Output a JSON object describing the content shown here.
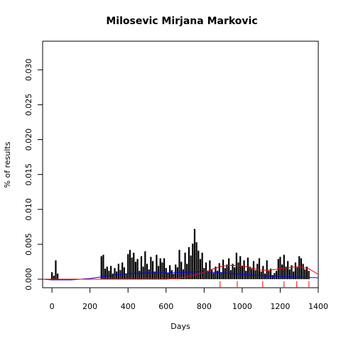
{
  "chart_data": {
    "type": "spike",
    "title": "Milosevic Mirjana Markovic",
    "xlabel": "Days",
    "ylabel": "% of results",
    "xlim": [
      -49,
      1400
    ],
    "ylim": [
      -0.00122,
      0.0341
    ],
    "xticks": [
      0,
      200,
      400,
      600,
      800,
      1000,
      1200,
      1400
    ],
    "yticks": [
      {
        "value": 0,
        "label": "0.000"
      },
      {
        "value": 0.005,
        "label": "0.005"
      },
      {
        "value": 0.01,
        "label": "0.010"
      },
      {
        "value": 0.015,
        "label": "0.015"
      },
      {
        "value": 0.02,
        "label": "0.020"
      },
      {
        "value": 0.025,
        "label": "0.025"
      },
      {
        "value": 0.03,
        "label": "0.030"
      }
    ],
    "spikes": {
      "color": "#000000",
      "x": [
        0,
        10,
        20,
        30,
        260,
        270,
        280,
        290,
        300,
        310,
        320,
        330,
        340,
        350,
        360,
        370,
        380,
        390,
        400,
        410,
        420,
        430,
        440,
        450,
        460,
        470,
        480,
        490,
        500,
        510,
        520,
        530,
        540,
        550,
        560,
        570,
        580,
        590,
        600,
        610,
        620,
        630,
        640,
        650,
        660,
        670,
        680,
        690,
        700,
        710,
        720,
        730,
        740,
        750,
        760,
        770,
        780,
        790,
        800,
        810,
        820,
        830,
        840,
        850,
        860,
        870,
        880,
        890,
        900,
        910,
        920,
        930,
        940,
        950,
        960,
        970,
        980,
        990,
        1000,
        1010,
        1020,
        1030,
        1040,
        1050,
        1060,
        1070,
        1080,
        1090,
        1100,
        1110,
        1120,
        1130,
        1140,
        1150,
        1160,
        1170,
        1180,
        1190,
        1200,
        1210,
        1220,
        1230,
        1240,
        1250,
        1260,
        1270,
        1280,
        1290,
        1300,
        1310,
        1320,
        1330,
        1340,
        1350
      ],
      "values": [
        0.001,
        0.0005,
        0.0027,
        0.0008,
        0.0033,
        0.0035,
        0.0015,
        0.0018,
        0.0012,
        0.0019,
        0.0008,
        0.0016,
        0.0011,
        0.0022,
        0.0013,
        0.0024,
        0.0017,
        0.0008,
        0.0036,
        0.0042,
        0.0031,
        0.0038,
        0.0025,
        0.0029,
        0.0012,
        0.0033,
        0.0018,
        0.004,
        0.0022,
        0.0014,
        0.0032,
        0.0026,
        0.0011,
        0.0035,
        0.0019,
        0.003,
        0.0024,
        0.003,
        0.0016,
        0.0009,
        0.002,
        0.0013,
        0.0008,
        0.0021,
        0.0017,
        0.0042,
        0.0025,
        0.0014,
        0.0038,
        0.0022,
        0.0046,
        0.0034,
        0.0051,
        0.0072,
        0.0053,
        0.0041,
        0.0029,
        0.0038,
        0.0016,
        0.0024,
        0.0011,
        0.0027,
        0.0014,
        0.0009,
        0.0018,
        0.0012,
        0.0023,
        0.001,
        0.0028,
        0.0016,
        0.0021,
        0.003,
        0.0013,
        0.0022,
        0.0017,
        0.0038,
        0.0024,
        0.0033,
        0.0019,
        0.0027,
        0.0012,
        0.0031,
        0.0018,
        0.0015,
        0.0026,
        0.0013,
        0.0022,
        0.003,
        0.0011,
        0.0019,
        0.0008,
        0.0027,
        0.0012,
        0.0015,
        0.0006,
        0.0009,
        0.0012,
        0.0029,
        0.0032,
        0.0021,
        0.0035,
        0.0018,
        0.0026,
        0.0014,
        0.002,
        0.0011,
        0.0024,
        0.0017,
        0.0033,
        0.003,
        0.0022,
        0.0014,
        0.0018,
        0.0012
      ]
    },
    "curves": [
      {
        "color": "#0000ff",
        "x": [
          -49,
          0,
          100,
          200,
          300,
          400,
          500,
          600,
          700,
          800,
          900,
          1000,
          1100,
          1200,
          1300,
          1400
        ],
        "values": [
          0,
          -0.0001,
          -0.0001,
          0.0001,
          0.0005,
          0.0008,
          0.0009,
          0.0009,
          0.001,
          0.0011,
          0.0009,
          0.0007,
          0.0005,
          0.0004,
          0.0003,
          0.0002
        ]
      },
      {
        "color": "#ff0000",
        "x": [
          -49,
          600,
          650,
          700,
          750,
          800,
          850,
          900,
          950,
          1000,
          1050,
          1100,
          1150,
          1200,
          1250,
          1300,
          1350,
          1400
        ],
        "values": [
          0,
          0,
          0.0001,
          0.0003,
          0.0006,
          0.001,
          0.0015,
          0.0019,
          0.002,
          0.0019,
          0.0016,
          0.0013,
          0.0013,
          0.0015,
          0.0017,
          0.0018,
          0.0015,
          0.0007
        ]
      }
    ],
    "rug": {
      "color": "#ff0000",
      "x": [
        884,
        974,
        1108,
        1220,
        1287,
        1351
      ]
    }
  }
}
